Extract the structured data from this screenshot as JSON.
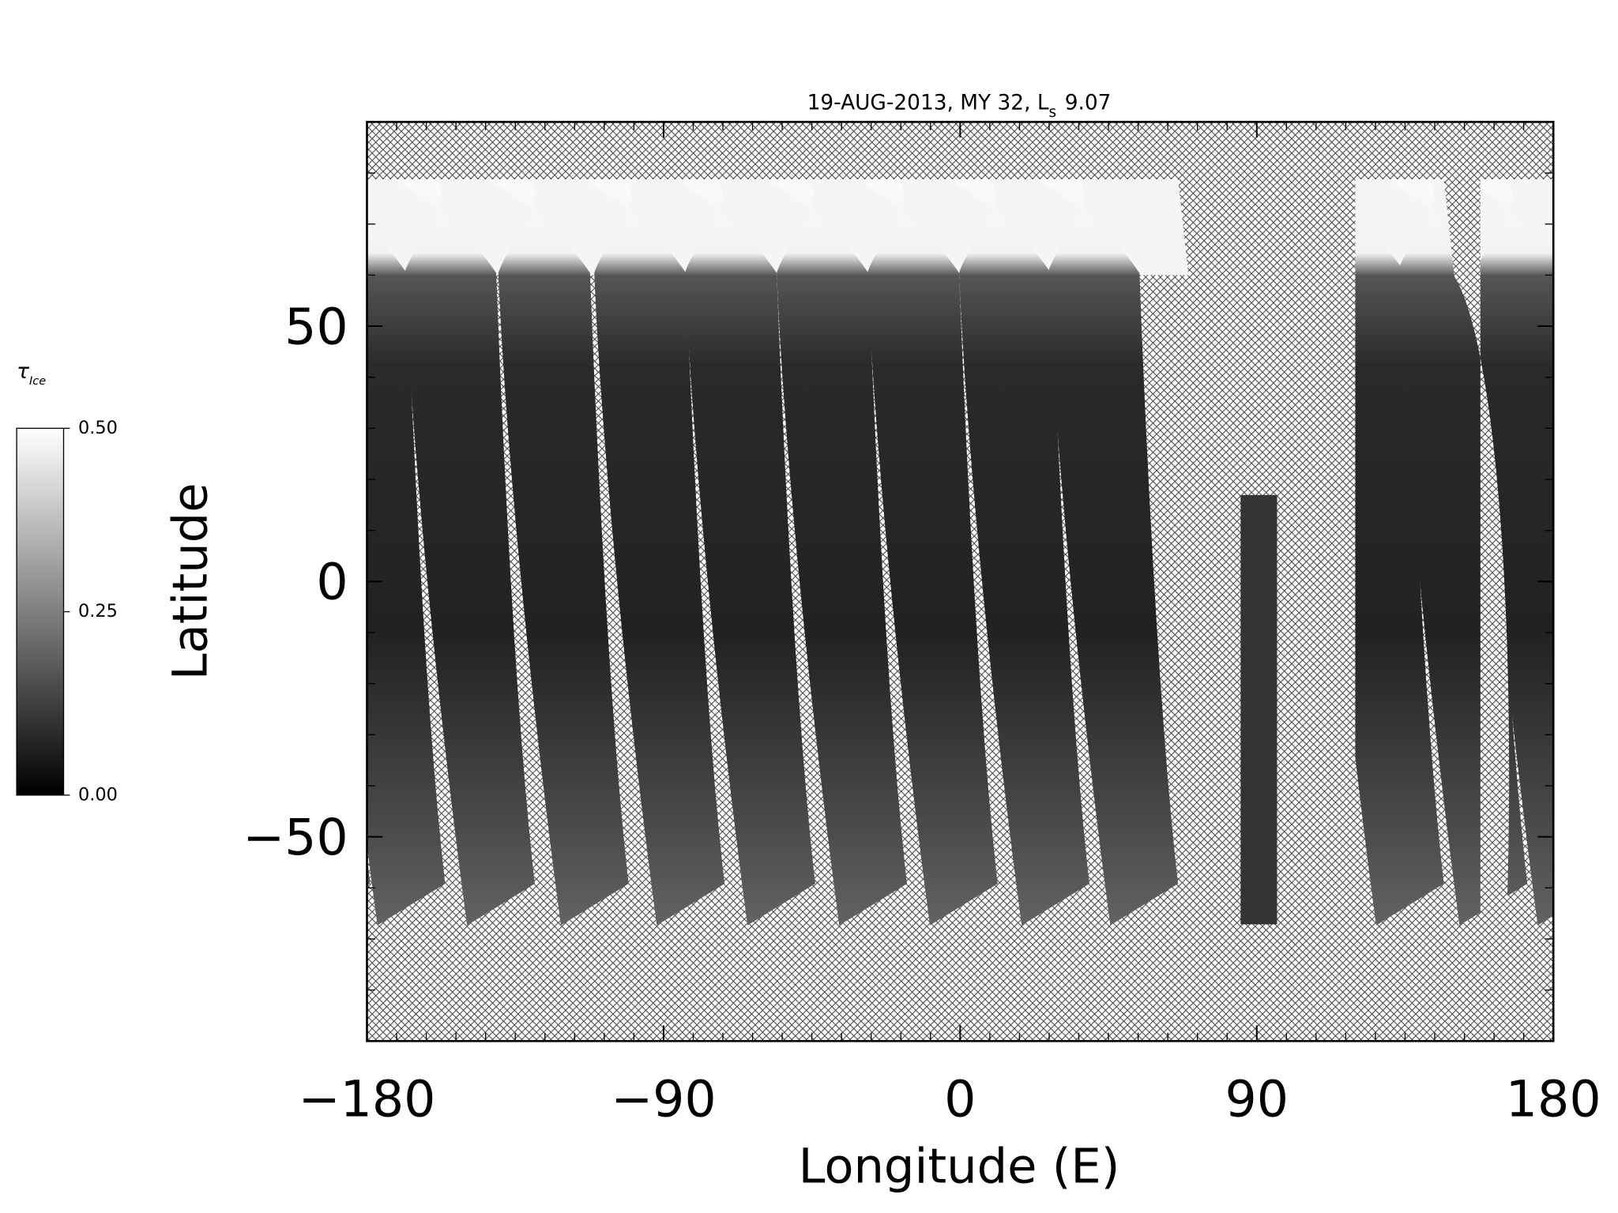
{
  "chart_data": {
    "type": "map",
    "title": "19-AUG-2013, MY 32,  L",
    "title_subscript": "s",
    "title_suffix": "9.07",
    "x_label": "Longitude (E)",
    "y_label": "Latitude",
    "xlim": [
      -180,
      180
    ],
    "ylim": [
      -90,
      90
    ],
    "xticks": [
      {
        "value": -180,
        "label": "−180"
      },
      {
        "value": -90,
        "label": "−90"
      },
      0,
      90,
      180
    ],
    "yticks": [
      {
        "value": -50,
        "label": "−50"
      },
      0,
      50
    ],
    "xminorticks": [
      -171,
      -162,
      -153,
      -144,
      -135,
      -126,
      -117,
      -108,
      -99,
      -81,
      -72,
      -63,
      -54,
      -45,
      -36,
      -27,
      -18,
      -9,
      9,
      18,
      27,
      36,
      45,
      54,
      63,
      72,
      81,
      99,
      108,
      117,
      126,
      135,
      144,
      153,
      162,
      171
    ],
    "yminorticks": [
      -80,
      -70,
      -60,
      -40,
      -30,
      -20,
      -10,
      10,
      20,
      30,
      40,
      60,
      70,
      80
    ],
    "colorbar": {
      "label": "τ",
      "label_subscript": "Ice",
      "lim": [
        0,
        0.5
      ],
      "ticks": [
        {
          "value": 0,
          "label": "0.00"
        },
        0.25,
        {
          "value": 0.5,
          "label": "0.50"
        }
      ],
      "colors": [
        "#000000",
        "#ffffff"
      ]
    }
  }
}
